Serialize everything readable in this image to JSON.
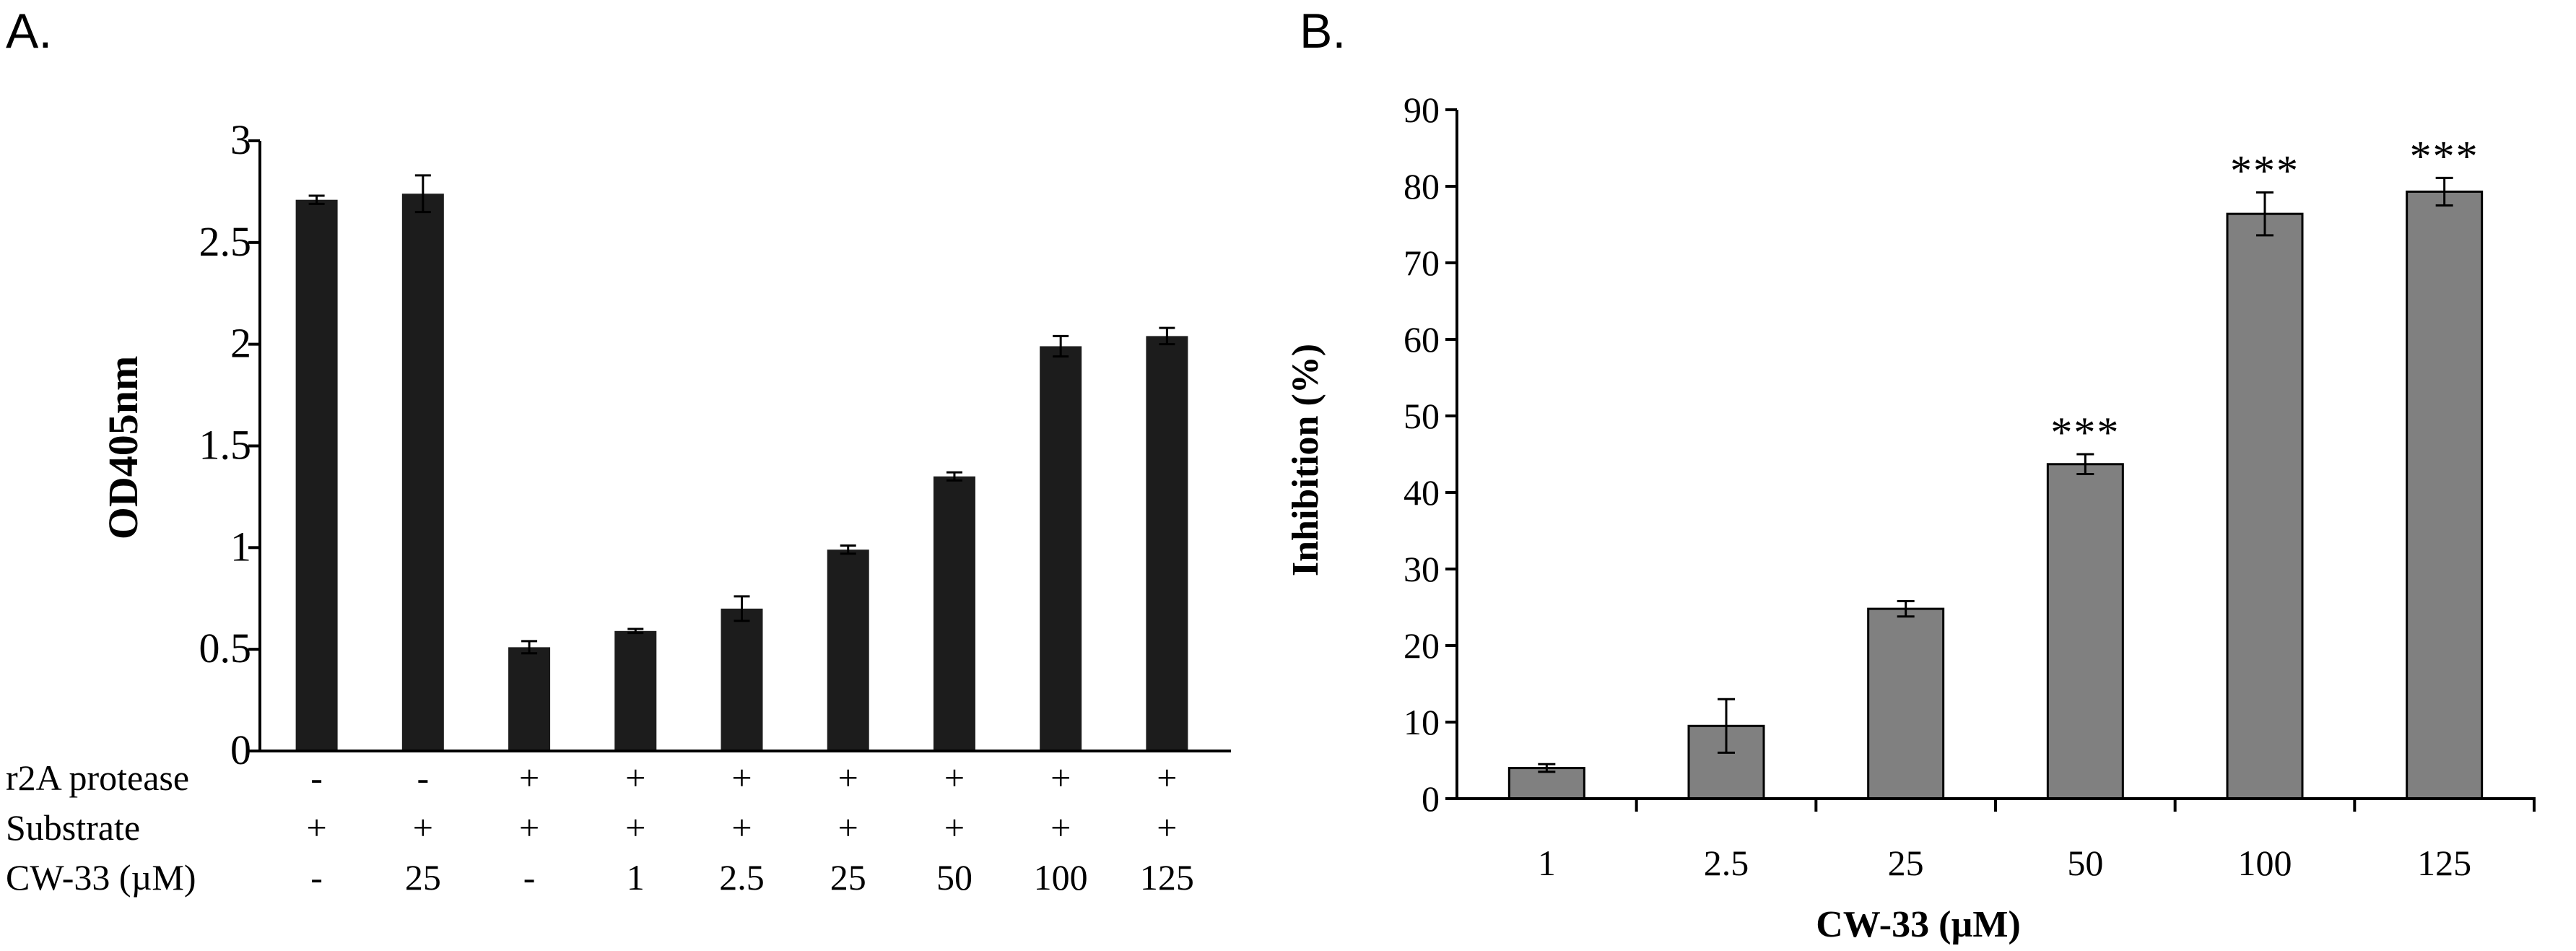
{
  "chart_data": [
    {
      "type": "bar",
      "panel_label": "A.",
      "ylabel": "OD405nm",
      "ylim": [
        0,
        3
      ],
      "yticks": [
        "0",
        "0.5",
        "1",
        "1.5",
        "2",
        "2.5",
        "3"
      ],
      "bar_color": "#1c1c1c",
      "values": [
        2.71,
        2.74,
        0.51,
        0.59,
        0.7,
        0.99,
        1.35,
        1.99,
        2.04
      ],
      "errors": [
        0.02,
        0.09,
        0.03,
        0.01,
        0.06,
        0.02,
        0.02,
        0.05,
        0.04
      ],
      "conditions": [
        {
          "label": "r2A protease",
          "values": [
            "-",
            "-",
            "+",
            "+",
            "+",
            "+",
            "+",
            "+",
            "+"
          ]
        },
        {
          "label": "Substrate",
          "values": [
            "+",
            "+",
            "+",
            "+",
            "+",
            "+",
            "+",
            "+",
            "+"
          ]
        },
        {
          "label": "CW-33 (µM)",
          "values": [
            "-",
            "25",
            "-",
            "1",
            "2.5",
            "25",
            "50",
            "100",
            "125"
          ]
        }
      ]
    },
    {
      "type": "bar",
      "panel_label": "B.",
      "ylabel": "Inhibition (%)",
      "xlabel": "CW-33 (µM)",
      "ylim": [
        0,
        90
      ],
      "yticks": [
        "0",
        "10",
        "20",
        "30",
        "40",
        "50",
        "60",
        "70",
        "80",
        "90"
      ],
      "bar_color": "#808080",
      "categories": [
        "1",
        "2.5",
        "25",
        "50",
        "100",
        "125"
      ],
      "values": [
        4.0,
        9.5,
        24.8,
        43.7,
        76.4,
        79.3
      ],
      "errors": [
        0.5,
        3.5,
        1.0,
        1.3,
        2.8,
        1.8
      ],
      "significance": [
        "",
        "",
        "",
        "***",
        "***",
        "***"
      ]
    }
  ]
}
